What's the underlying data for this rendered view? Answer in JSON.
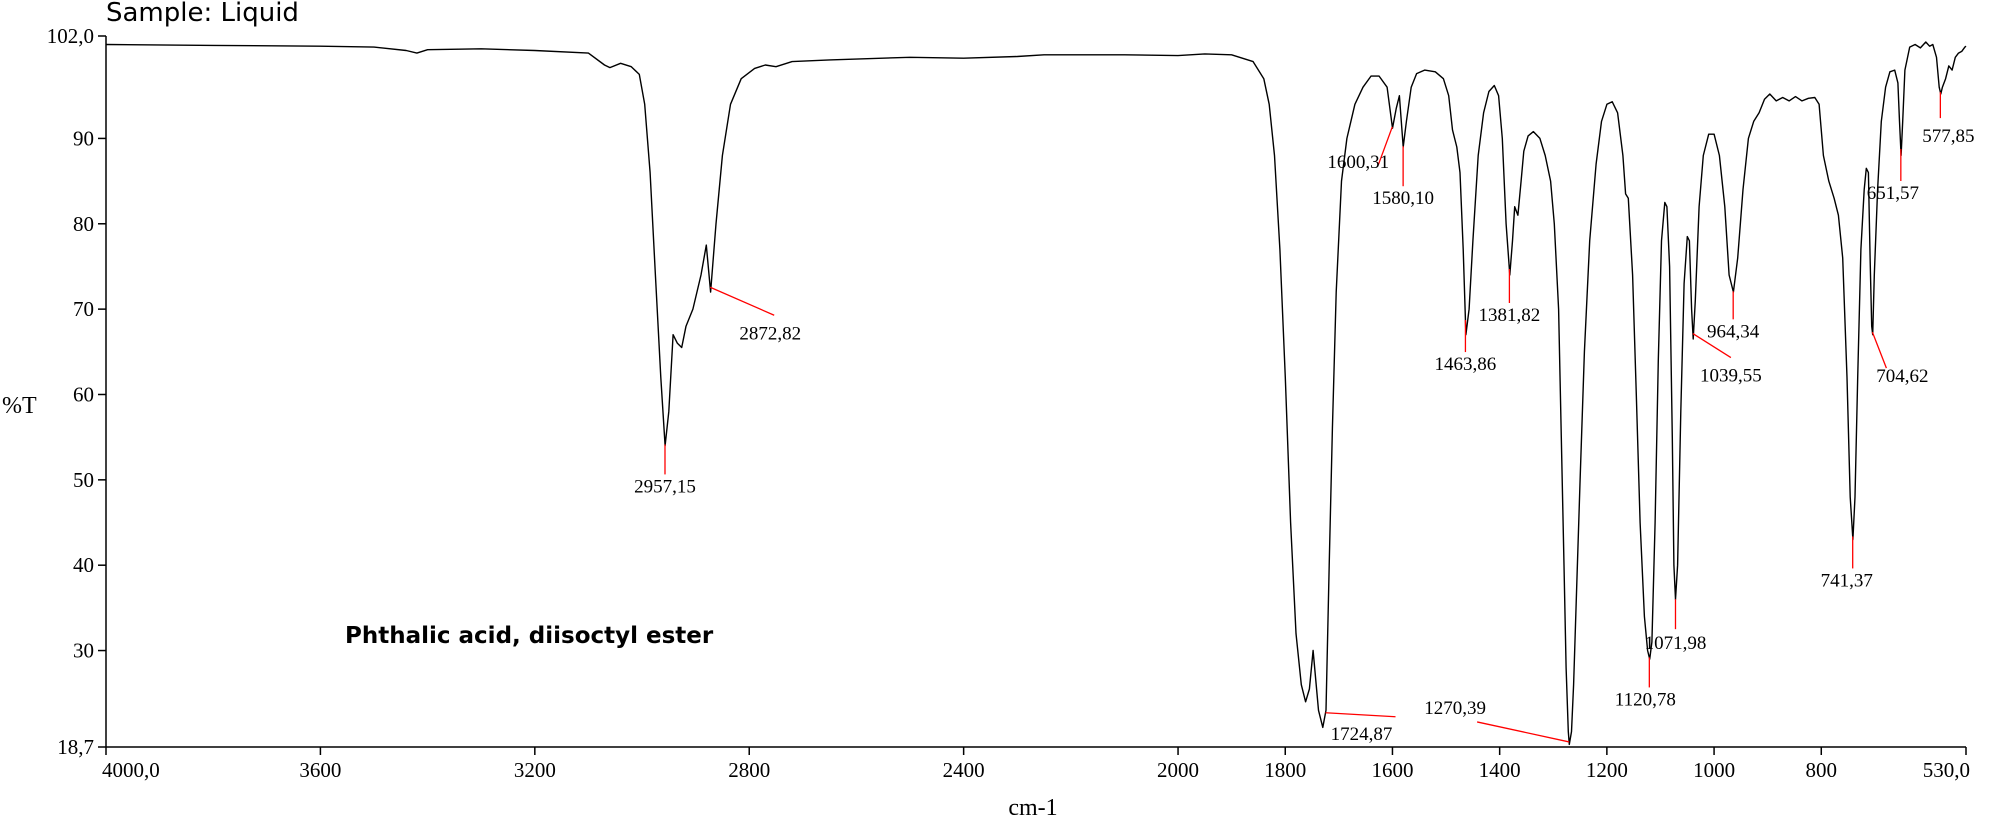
{
  "chart_data": {
    "type": "line",
    "header_text": "Sample: Liquid",
    "annotation": "Phthalic acid, diisoctyl ester",
    "xlabel": "cm-1",
    "ylabel": "%T",
    "xlim": [
      4000,
      530
    ],
    "ylim": [
      18.7,
      102.0
    ],
    "x_ticks": [
      {
        "value": 4000,
        "label": "4000,0"
      },
      {
        "value": 3600,
        "label": "3600"
      },
      {
        "value": 3200,
        "label": "3200"
      },
      {
        "value": 2800,
        "label": "2800"
      },
      {
        "value": 2400,
        "label": "2400"
      },
      {
        "value": 2000,
        "label": "2000"
      },
      {
        "value": 1800,
        "label": "1800"
      },
      {
        "value": 1600,
        "label": "1600"
      },
      {
        "value": 1400,
        "label": "1400"
      },
      {
        "value": 1200,
        "label": "1200"
      },
      {
        "value": 1000,
        "label": "1000"
      },
      {
        "value": 800,
        "label": "800"
      },
      {
        "value": 530,
        "label": "530,0"
      }
    ],
    "y_ticks": [
      {
        "value": 102.0,
        "label": "102,0"
      },
      {
        "value": 90,
        "label": "90"
      },
      {
        "value": 80,
        "label": "80"
      },
      {
        "value": 70,
        "label": "70"
      },
      {
        "value": 60,
        "label": "60"
      },
      {
        "value": 50,
        "label": "50"
      },
      {
        "value": 40,
        "label": "40"
      },
      {
        "value": 30,
        "label": "30"
      },
      {
        "value": 18.7,
        "label": "18,7"
      }
    ],
    "series": [
      {
        "color": "#000000",
        "points": [
          [
            4000,
            101.0
          ],
          [
            3800,
            100.9
          ],
          [
            3600,
            100.8
          ],
          [
            3500,
            100.7
          ],
          [
            3440,
            100.3
          ],
          [
            3420,
            100.0
          ],
          [
            3400,
            100.4
          ],
          [
            3300,
            100.5
          ],
          [
            3200,
            100.3
          ],
          [
            3100,
            100.0
          ],
          [
            3070,
            98.6
          ],
          [
            3060,
            98.3
          ],
          [
            3040,
            98.8
          ],
          [
            3020,
            98.4
          ],
          [
            3005,
            97.5
          ],
          [
            2995,
            94.0
          ],
          [
            2985,
            86.0
          ],
          [
            2975,
            74.0
          ],
          [
            2965,
            62.0
          ],
          [
            2957,
            54.0
          ],
          [
            2950,
            58.0
          ],
          [
            2942,
            67.0
          ],
          [
            2934,
            66.0
          ],
          [
            2926,
            65.5
          ],
          [
            2918,
            68.0
          ],
          [
            2905,
            70.0
          ],
          [
            2890,
            74.0
          ],
          [
            2880,
            77.5
          ],
          [
            2872,
            72.0
          ],
          [
            2862,
            80.0
          ],
          [
            2850,
            88.0
          ],
          [
            2835,
            94.0
          ],
          [
            2815,
            97.0
          ],
          [
            2790,
            98.2
          ],
          [
            2770,
            98.6
          ],
          [
            2750,
            98.4
          ],
          [
            2720,
            99.0
          ],
          [
            2650,
            99.2
          ],
          [
            2500,
            99.5
          ],
          [
            2400,
            99.4
          ],
          [
            2300,
            99.6
          ],
          [
            2250,
            99.8
          ],
          [
            2100,
            99.8
          ],
          [
            2000,
            99.7
          ],
          [
            1950,
            99.9
          ],
          [
            1900,
            99.8
          ],
          [
            1860,
            99.0
          ],
          [
            1840,
            97.0
          ],
          [
            1830,
            94.0
          ],
          [
            1820,
            88.0
          ],
          [
            1810,
            77.0
          ],
          [
            1800,
            62.0
          ],
          [
            1790,
            45.0
          ],
          [
            1780,
            32.0
          ],
          [
            1770,
            26.0
          ],
          [
            1762,
            24.0
          ],
          [
            1755,
            25.5
          ],
          [
            1748,
            30.0
          ],
          [
            1738,
            23.0
          ],
          [
            1730,
            21.0
          ],
          [
            1724,
            23.0
          ],
          [
            1718,
            40.0
          ],
          [
            1712,
            56.0
          ],
          [
            1705,
            72.0
          ],
          [
            1695,
            85.0
          ],
          [
            1685,
            90.0
          ],
          [
            1670,
            94.0
          ],
          [
            1655,
            96.0
          ],
          [
            1640,
            97.3
          ],
          [
            1625,
            97.3
          ],
          [
            1610,
            96.0
          ],
          [
            1600,
            91.2
          ],
          [
            1593,
            93.5
          ],
          [
            1587,
            95.0
          ],
          [
            1580,
            89.0
          ],
          [
            1574,
            92.0
          ],
          [
            1565,
            96.0
          ],
          [
            1555,
            97.6
          ],
          [
            1540,
            98.0
          ],
          [
            1520,
            97.8
          ],
          [
            1505,
            97.0
          ],
          [
            1495,
            95.0
          ],
          [
            1488,
            91.0
          ],
          [
            1480,
            89.0
          ],
          [
            1474,
            86.0
          ],
          [
            1468,
            77.0
          ],
          [
            1463,
            67.0
          ],
          [
            1457,
            70.0
          ],
          [
            1450,
            78.0
          ],
          [
            1440,
            88.0
          ],
          [
            1430,
            93.0
          ],
          [
            1420,
            95.5
          ],
          [
            1410,
            96.2
          ],
          [
            1402,
            95.0
          ],
          [
            1395,
            90.0
          ],
          [
            1388,
            80.0
          ],
          [
            1381,
            74.0
          ],
          [
            1376,
            78.0
          ],
          [
            1372,
            82.0
          ],
          [
            1366,
            81.0
          ],
          [
            1360,
            85.0
          ],
          [
            1355,
            88.5
          ],
          [
            1347,
            90.3
          ],
          [
            1337,
            90.8
          ],
          [
            1325,
            90.0
          ],
          [
            1315,
            88.0
          ],
          [
            1305,
            85.0
          ],
          [
            1298,
            80.0
          ],
          [
            1290,
            70.0
          ],
          [
            1285,
            55.0
          ],
          [
            1280,
            40.0
          ],
          [
            1276,
            28.0
          ],
          [
            1272,
            20.5
          ],
          [
            1270,
            19.0
          ],
          [
            1266,
            20.5
          ],
          [
            1262,
            26.0
          ],
          [
            1257,
            36.0
          ],
          [
            1250,
            50.0
          ],
          [
            1242,
            65.0
          ],
          [
            1232,
            78.0
          ],
          [
            1220,
            87.0
          ],
          [
            1210,
            92.0
          ],
          [
            1200,
            94.0
          ],
          [
            1190,
            94.3
          ],
          [
            1180,
            93.0
          ],
          [
            1170,
            88.0
          ],
          [
            1165,
            83.5
          ],
          [
            1160,
            83.0
          ],
          [
            1152,
            74.0
          ],
          [
            1145,
            60.0
          ],
          [
            1138,
            45.0
          ],
          [
            1130,
            34.0
          ],
          [
            1124,
            30.0
          ],
          [
            1120,
            29.0
          ],
          [
            1116,
            31.0
          ],
          [
            1110,
            45.0
          ],
          [
            1104,
            64.0
          ],
          [
            1098,
            78.0
          ],
          [
            1092,
            82.5
          ],
          [
            1088,
            82.0
          ],
          [
            1083,
            75.0
          ],
          [
            1078,
            55.0
          ],
          [
            1075,
            40.0
          ],
          [
            1072,
            36.0
          ],
          [
            1068,
            40.0
          ],
          [
            1062,
            58.0
          ],
          [
            1056,
            73.0
          ],
          [
            1050,
            78.5
          ],
          [
            1046,
            78.0
          ],
          [
            1042,
            70.0
          ],
          [
            1039,
            66.5
          ],
          [
            1035,
            71.0
          ],
          [
            1028,
            82.0
          ],
          [
            1020,
            88.0
          ],
          [
            1010,
            90.5
          ],
          [
            1000,
            90.5
          ],
          [
            990,
            88.0
          ],
          [
            980,
            82.0
          ],
          [
            972,
            74.0
          ],
          [
            964,
            72.0
          ],
          [
            956,
            76.0
          ],
          [
            946,
            84.0
          ],
          [
            936,
            90.0
          ],
          [
            926,
            92.0
          ],
          [
            916,
            93.0
          ],
          [
            906,
            94.6
          ],
          [
            896,
            95.2
          ],
          [
            884,
            94.4
          ],
          [
            872,
            94.8
          ],
          [
            860,
            94.4
          ],
          [
            848,
            94.9
          ],
          [
            836,
            94.4
          ],
          [
            824,
            94.7
          ],
          [
            812,
            94.8
          ],
          [
            804,
            94.0
          ],
          [
            796,
            88.0
          ],
          [
            786,
            85.0
          ],
          [
            776,
            83.0
          ],
          [
            768,
            81.0
          ],
          [
            760,
            76.0
          ],
          [
            752,
            62.0
          ],
          [
            746,
            48.0
          ],
          [
            741,
            43.0
          ],
          [
            737,
            48.0
          ],
          [
            732,
            62.0
          ],
          [
            726,
            77.0
          ],
          [
            720,
            84.0
          ],
          [
            716,
            86.5
          ],
          [
            712,
            86.0
          ],
          [
            709,
            76.0
          ],
          [
            706,
            68.0
          ],
          [
            704,
            67.0
          ],
          [
            701,
            74.0
          ],
          [
            695,
            84.0
          ],
          [
            688,
            92.0
          ],
          [
            680,
            96.0
          ],
          [
            672,
            97.8
          ],
          [
            663,
            98.0
          ],
          [
            657,
            96.5
          ],
          [
            654,
            92.0
          ],
          [
            651,
            88.0
          ],
          [
            648,
            92.0
          ],
          [
            644,
            98.0
          ],
          [
            635,
            100.7
          ],
          [
            625,
            101.0
          ],
          [
            615,
            100.6
          ],
          [
            605,
            101.3
          ],
          [
            598,
            100.8
          ],
          [
            592,
            101.0
          ],
          [
            585,
            99.5
          ],
          [
            580,
            96.0
          ],
          [
            577,
            95.2
          ],
          [
            574,
            96.0
          ],
          [
            568,
            97.0
          ],
          [
            562,
            98.5
          ],
          [
            556,
            98.0
          ],
          [
            550,
            99.5
          ],
          [
            544,
            100.0
          ],
          [
            538,
            100.2
          ],
          [
            532,
            100.7
          ],
          [
            530,
            100.8
          ]
        ]
      }
    ],
    "peaks": [
      {
        "x": 2957.15,
        "label": "2957,15"
      },
      {
        "x": 2872.82,
        "label": "2872,82"
      },
      {
        "x": 1724.87,
        "label": "1724,87"
      },
      {
        "x": 1600.31,
        "label": "1600,31"
      },
      {
        "x": 1580.1,
        "label": "1580,10"
      },
      {
        "x": 1463.86,
        "label": "1463,86"
      },
      {
        "x": 1381.82,
        "label": "1381,82"
      },
      {
        "x": 1270.39,
        "label": "1270,39"
      },
      {
        "x": 1120.78,
        "label": "1120,78"
      },
      {
        "x": 1071.98,
        "label": "1071,98"
      },
      {
        "x": 1039.55,
        "label": "1039,55"
      },
      {
        "x": 964.34,
        "label": "964,34"
      },
      {
        "x": 741.37,
        "label": "741,37"
      },
      {
        "x": 704.62,
        "label": "704,62"
      },
      {
        "x": 651.57,
        "label": "651,57"
      },
      {
        "x": 577.85,
        "label": "577,85"
      }
    ]
  }
}
